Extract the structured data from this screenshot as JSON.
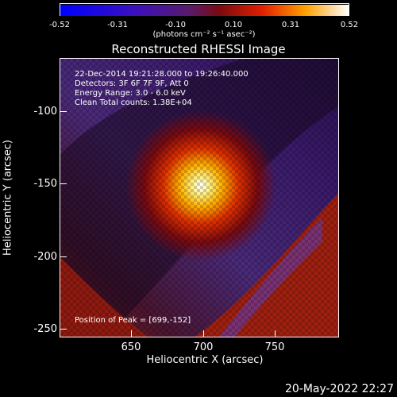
{
  "colorbar": {
    "ticks": [
      "-0.52",
      "-0.31",
      "-0.10",
      "0.10",
      "0.31",
      "0.52"
    ],
    "units": "(photons cm⁻² s⁻¹ asec⁻²)"
  },
  "title": "Reconstructed RHESSI Image",
  "annotations": {
    "time": "22-Dec-2014 19:21:28.000 to 19:26:40.000",
    "detectors": "Detectors: 3F 6F 7F 9F, Att 0",
    "energy": "Energy Range: 3.0 - 6.0 keV",
    "method": "Clean     Total counts: 1.38E+04",
    "peak": "Position of Peak = [699,-152]"
  },
  "axes": {
    "xlabel": "Heliocentric X (arcsec)",
    "ylabel": "Heliocentric Y (arcsec)",
    "xticks": [
      "650",
      "700",
      "750"
    ],
    "yticks": [
      "-100",
      "-150",
      "-200",
      "-250"
    ]
  },
  "footer_date": "20-May-2022 22:27",
  "chart_data": {
    "type": "heatmap",
    "title": "Reconstructed RHESSI Image",
    "xlabel": "Heliocentric X (arcsec)",
    "ylabel": "Heliocentric Y (arcsec)",
    "xlim": [
      602,
      790
    ],
    "ylim": [
      -257,
      -69
    ],
    "clim": [
      -0.52,
      0.52
    ],
    "colormap": "blue-purple-red-yellow-white",
    "peak": [
      699,
      -152
    ]
  }
}
